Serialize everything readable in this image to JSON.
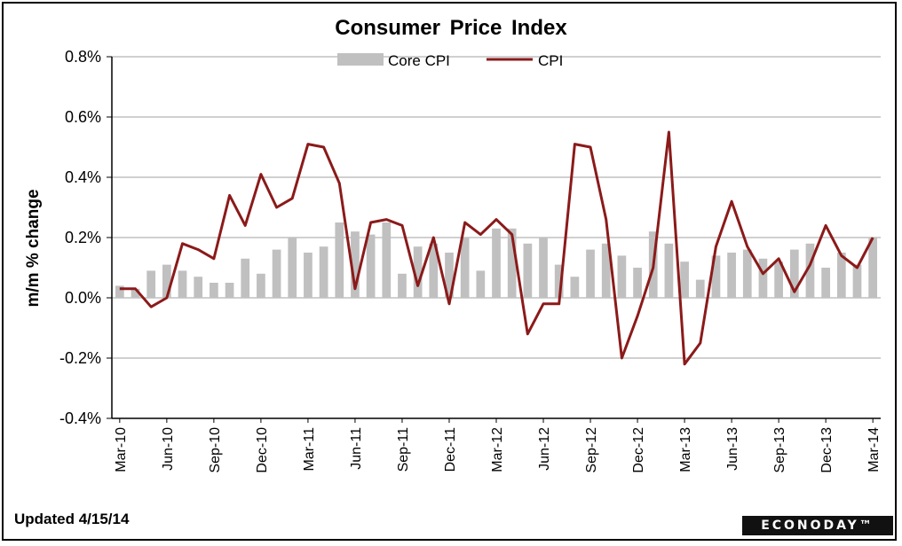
{
  "chart_data": {
    "type": "bar+line",
    "title": "Consumer  Price Index",
    "ylabel": "m/m % change",
    "xlabel": "",
    "ylim": [
      -0.4,
      0.8
    ],
    "yticks": [
      -0.4,
      -0.2,
      0.0,
      0.2,
      0.4,
      0.6,
      0.8
    ],
    "ytick_labels": [
      "-0.4%",
      "-0.2%",
      "0.0%",
      "0.2%",
      "0.4%",
      "0.6%",
      "0.8%"
    ],
    "grid": "horizontal",
    "legend_position": "top-center",
    "categories": [
      "Mar-10",
      "Apr-10",
      "May-10",
      "Jun-10",
      "Jul-10",
      "Aug-10",
      "Sep-10",
      "Oct-10",
      "Nov-10",
      "Dec-10",
      "Jan-11",
      "Feb-11",
      "Mar-11",
      "Apr-11",
      "May-11",
      "Jun-11",
      "Jul-11",
      "Aug-11",
      "Sep-11",
      "Oct-11",
      "Nov-11",
      "Dec-11",
      "Jan-12",
      "Feb-12",
      "Mar-12",
      "Apr-12",
      "May-12",
      "Jun-12",
      "Jul-12",
      "Aug-12",
      "Sep-12",
      "Oct-12",
      "Nov-12",
      "Dec-12",
      "Jan-13",
      "Feb-13",
      "Mar-13",
      "Apr-13",
      "May-13",
      "Jun-13",
      "Jul-13",
      "Aug-13",
      "Sep-13",
      "Oct-13",
      "Nov-13",
      "Dec-13",
      "Jan-14",
      "Feb-14",
      "Mar-14"
    ],
    "xtick_labels": [
      "Mar-10",
      "Jun-10",
      "Sep-10",
      "Dec-10",
      "Mar-11",
      "Jun-11",
      "Sep-11",
      "Dec-11",
      "Mar-12",
      "Jun-12",
      "Sep-12",
      "Dec-12",
      "Mar-13",
      "Jun-13",
      "Sep-13",
      "Dec-13",
      "Mar-14"
    ],
    "series": [
      {
        "name": "Core CPI",
        "type": "bar",
        "color": "#c0c0c0",
        "values": [
          0.04,
          0.03,
          0.09,
          0.11,
          0.09,
          0.07,
          0.05,
          0.05,
          0.13,
          0.08,
          0.16,
          0.2,
          0.15,
          0.17,
          0.25,
          0.22,
          0.21,
          0.25,
          0.08,
          0.17,
          0.18,
          0.15,
          0.2,
          0.09,
          0.23,
          0.23,
          0.18,
          0.2,
          0.11,
          0.07,
          0.16,
          0.18,
          0.14,
          0.1,
          0.22,
          0.18,
          0.12,
          0.06,
          0.14,
          0.15,
          0.16,
          0.13,
          0.12,
          0.16,
          0.18,
          0.1,
          0.15,
          0.11,
          0.2
        ]
      },
      {
        "name": "CPI",
        "type": "line",
        "color": "#8b1a1a",
        "values": [
          0.03,
          0.03,
          -0.03,
          0.0,
          0.18,
          0.16,
          0.13,
          0.34,
          0.24,
          0.41,
          0.3,
          0.33,
          0.51,
          0.5,
          0.38,
          0.03,
          0.25,
          0.26,
          0.24,
          0.04,
          0.2,
          -0.02,
          0.25,
          0.21,
          0.26,
          0.21,
          -0.12,
          -0.02,
          -0.02,
          0.51,
          0.5,
          0.26,
          -0.2,
          -0.06,
          0.1,
          0.55,
          -0.22,
          -0.15,
          0.17,
          0.32,
          0.17,
          0.08,
          0.13,
          0.02,
          0.11,
          0.24,
          0.14,
          0.1,
          0.2
        ]
      }
    ]
  },
  "footer": {
    "updated": "Updated 4/15/14",
    "brand": "ECONODAY™"
  }
}
